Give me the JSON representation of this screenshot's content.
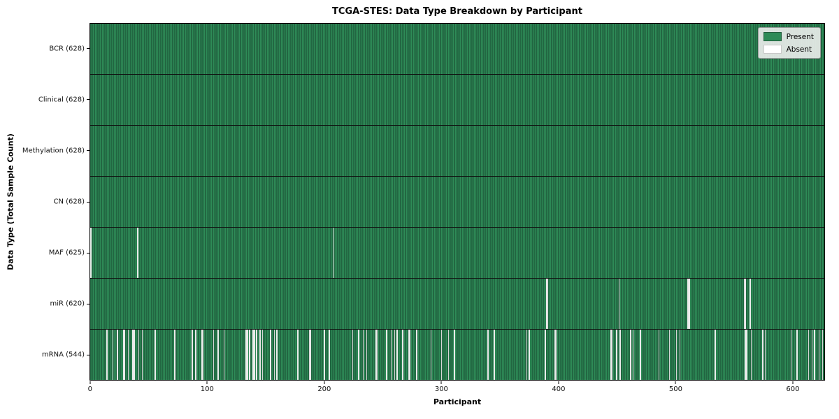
{
  "chart_data": {
    "type": "heatmap",
    "title": "TCGA-STES: Data Type Breakdown by Participant",
    "xlabel": "Participant",
    "ylabel": "Data Type (Total Sample Count)",
    "n_participants": 628,
    "x_range": [
      0,
      628
    ],
    "x_ticks": [
      0,
      100,
      200,
      300,
      400,
      500,
      600
    ],
    "grid": false,
    "legend_position": "upper right",
    "colors": {
      "present": "#2e8b57",
      "present_edge": "#17432c",
      "absent": "#ffffff",
      "row_separator": "#101010"
    },
    "legend": [
      {
        "label": "Present",
        "key": "present"
      },
      {
        "label": "Absent",
        "key": "absent"
      }
    ],
    "rows": [
      {
        "label": "BCR (628)",
        "data_type": "BCR",
        "present_count": 628,
        "absent_participants": []
      },
      {
        "label": "Clinical (628)",
        "data_type": "Clinical",
        "present_count": 628,
        "absent_participants": []
      },
      {
        "label": "Methylation (628)",
        "data_type": "Methylation",
        "present_count": 628,
        "absent_participants": []
      },
      {
        "label": "CN (628)",
        "data_type": "CN",
        "present_count": 628,
        "absent_participants": []
      },
      {
        "label": "MAF (625)",
        "data_type": "MAF",
        "present_count": 625,
        "absent_participants": [
          0,
          40,
          208
        ]
      },
      {
        "label": "miR (620)",
        "data_type": "miR",
        "present_count": 620,
        "absent_participants": [
          390,
          391,
          452,
          511,
          512,
          559,
          560,
          564
        ]
      },
      {
        "label": "mRNA (544)",
        "data_type": "mRNA",
        "present_count": 544,
        "absent_participants": [
          14,
          19,
          23,
          28,
          29,
          32,
          36,
          37,
          41,
          44,
          55,
          72,
          87,
          90,
          95,
          96,
          105,
          109,
          114,
          133,
          134,
          136,
          139,
          140,
          142,
          145,
          147,
          154,
          157,
          159,
          177,
          187,
          188,
          200,
          204,
          224,
          229,
          233,
          236,
          244,
          245,
          253,
          257,
          260,
          262,
          267,
          272,
          273,
          279,
          291,
          300,
          306,
          311,
          340,
          345,
          373,
          375,
          389,
          397,
          398,
          445,
          446,
          450,
          453,
          462,
          464,
          470,
          486,
          495,
          501,
          504,
          534,
          560,
          561,
          565,
          575,
          577,
          599,
          604,
          614,
          617,
          619,
          623,
          626
        ]
      }
    ]
  }
}
